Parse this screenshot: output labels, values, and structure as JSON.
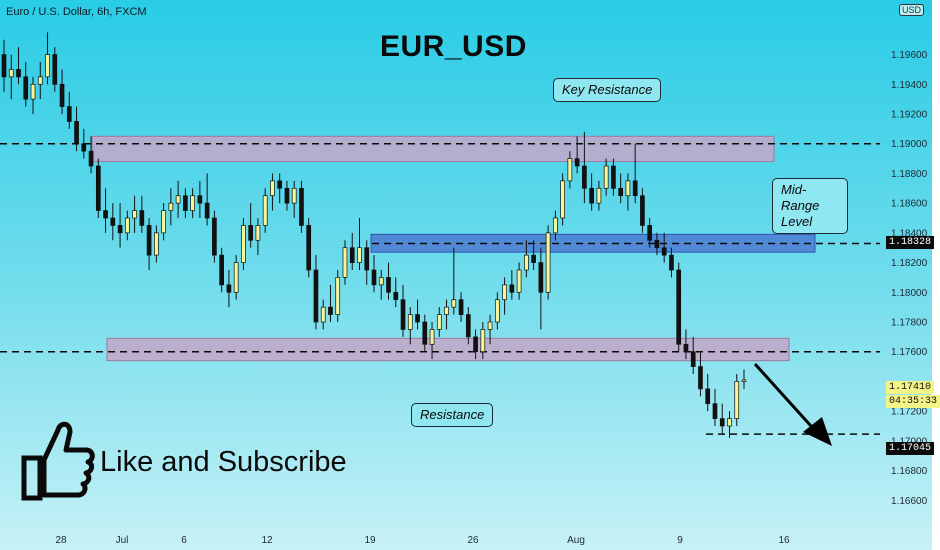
{
  "header": {
    "symbol_info": "Euro / U.S. Dollar, 6h, FXCM",
    "currency": "USD"
  },
  "chart_data": {
    "type": "candlestick",
    "title": "EUR_USD",
    "ylim": [
      1.164,
      1.199
    ],
    "y_ticks": [
      "1.19600",
      "1.19400",
      "1.19200",
      "1.19000",
      "1.18800",
      "1.18600",
      "1.18400",
      "1.18200",
      "1.18000",
      "1.17800",
      "1.17600",
      "1.17200",
      "1.17000",
      "1.16800",
      "1.16600"
    ],
    "x_ticks": [
      "28",
      "Jul",
      "6",
      "12",
      "19",
      "26",
      "Aug",
      "9",
      "16"
    ],
    "zones": [
      {
        "label": "Key Resistance",
        "low": 1.1888,
        "high": 1.1905,
        "color": "#c6a6c8"
      },
      {
        "label": "Mid-Range Level",
        "low": 1.1827,
        "high": 1.1839,
        "color": "#4c7bd4"
      },
      {
        "label": "Resistance",
        "low": 1.1754,
        "high": 1.1769,
        "color": "#c6a6c8"
      }
    ],
    "levels": [
      1.19,
      1.18328,
      1.176,
      1.17045
    ],
    "annotations": [
      "Key Resistance",
      "Mid-Range Level",
      "Resistance"
    ],
    "last_price": "1.17410",
    "countdown": "04:35:33",
    "target_price": "1.17045",
    "mid_level_price": "1.18328",
    "candles": [
      [
        1.196,
        1.197,
        1.1935,
        1.1945
      ],
      [
        1.1945,
        1.196,
        1.193,
        1.195
      ],
      [
        1.195,
        1.1965,
        1.194,
        1.1945
      ],
      [
        1.1945,
        1.1955,
        1.1925,
        1.193
      ],
      [
        1.193,
        1.1945,
        1.192,
        1.194
      ],
      [
        1.194,
        1.1955,
        1.193,
        1.1945
      ],
      [
        1.1945,
        1.1975,
        1.194,
        1.196
      ],
      [
        1.196,
        1.1965,
        1.1935,
        1.194
      ],
      [
        1.194,
        1.195,
        1.192,
        1.1925
      ],
      [
        1.1925,
        1.1935,
        1.191,
        1.1915
      ],
      [
        1.1915,
        1.1925,
        1.1895,
        1.19
      ],
      [
        1.19,
        1.191,
        1.189,
        1.1895
      ],
      [
        1.1895,
        1.1905,
        1.188,
        1.1885
      ],
      [
        1.1885,
        1.189,
        1.185,
        1.1855
      ],
      [
        1.1855,
        1.187,
        1.184,
        1.185
      ],
      [
        1.185,
        1.186,
        1.1835,
        1.1845
      ],
      [
        1.1845,
        1.186,
        1.183,
        1.184
      ],
      [
        1.184,
        1.1855,
        1.1835,
        1.185
      ],
      [
        1.185,
        1.1865,
        1.184,
        1.1855
      ],
      [
        1.1855,
        1.1865,
        1.184,
        1.1845
      ],
      [
        1.1845,
        1.185,
        1.1815,
        1.1825
      ],
      [
        1.1825,
        1.1845,
        1.182,
        1.184
      ],
      [
        1.184,
        1.186,
        1.1835,
        1.1855
      ],
      [
        1.1855,
        1.187,
        1.1845,
        1.186
      ],
      [
        1.186,
        1.1875,
        1.185,
        1.1865
      ],
      [
        1.1865,
        1.187,
        1.185,
        1.1855
      ],
      [
        1.1855,
        1.187,
        1.185,
        1.1865
      ],
      [
        1.1865,
        1.1875,
        1.185,
        1.186
      ],
      [
        1.186,
        1.188,
        1.1845,
        1.185
      ],
      [
        1.185,
        1.1855,
        1.182,
        1.1825
      ],
      [
        1.1825,
        1.183,
        1.18,
        1.1805
      ],
      [
        1.1805,
        1.1815,
        1.179,
        1.18
      ],
      [
        1.18,
        1.1825,
        1.1795,
        1.182
      ],
      [
        1.182,
        1.185,
        1.1815,
        1.1845
      ],
      [
        1.1845,
        1.186,
        1.183,
        1.1835
      ],
      [
        1.1835,
        1.185,
        1.1825,
        1.1845
      ],
      [
        1.1845,
        1.187,
        1.184,
        1.1865
      ],
      [
        1.1865,
        1.188,
        1.1855,
        1.1875
      ],
      [
        1.1875,
        1.188,
        1.186,
        1.187
      ],
      [
        1.187,
        1.1875,
        1.1855,
        1.186
      ],
      [
        1.186,
        1.1875,
        1.185,
        1.187
      ],
      [
        1.187,
        1.1875,
        1.184,
        1.1845
      ],
      [
        1.1845,
        1.185,
        1.181,
        1.1815
      ],
      [
        1.1815,
        1.1825,
        1.1775,
        1.178
      ],
      [
        1.178,
        1.1795,
        1.1775,
        1.179
      ],
      [
        1.179,
        1.1805,
        1.178,
        1.1785
      ],
      [
        1.1785,
        1.1815,
        1.178,
        1.181
      ],
      [
        1.181,
        1.1835,
        1.1805,
        1.183
      ],
      [
        1.183,
        1.184,
        1.1815,
        1.182
      ],
      [
        1.182,
        1.185,
        1.1815,
        1.183
      ],
      [
        1.183,
        1.1835,
        1.1805,
        1.1815
      ],
      [
        1.1815,
        1.1825,
        1.18,
        1.1805
      ],
      [
        1.1805,
        1.1815,
        1.1795,
        1.181
      ],
      [
        1.181,
        1.182,
        1.1795,
        1.18
      ],
      [
        1.18,
        1.181,
        1.179,
        1.1795
      ],
      [
        1.1795,
        1.1805,
        1.177,
        1.1775
      ],
      [
        1.1775,
        1.179,
        1.1765,
        1.1785
      ],
      [
        1.1785,
        1.1795,
        1.1775,
        1.178
      ],
      [
        1.178,
        1.1785,
        1.176,
        1.1765
      ],
      [
        1.1765,
        1.178,
        1.1755,
        1.1775
      ],
      [
        1.1775,
        1.179,
        1.177,
        1.1785
      ],
      [
        1.1785,
        1.1795,
        1.1775,
        1.179
      ],
      [
        1.179,
        1.183,
        1.1785,
        1.1795
      ],
      [
        1.1795,
        1.18,
        1.178,
        1.1785
      ],
      [
        1.1785,
        1.179,
        1.1765,
        1.177
      ],
      [
        1.177,
        1.1775,
        1.1755,
        1.176
      ],
      [
        1.176,
        1.178,
        1.1755,
        1.1775
      ],
      [
        1.1775,
        1.1785,
        1.1765,
        1.178
      ],
      [
        1.178,
        1.18,
        1.1775,
        1.1795
      ],
      [
        1.1795,
        1.181,
        1.1785,
        1.1805
      ],
      [
        1.1805,
        1.1815,
        1.1795,
        1.18
      ],
      [
        1.18,
        1.182,
        1.1795,
        1.1815
      ],
      [
        1.1815,
        1.1835,
        1.181,
        1.1825
      ],
      [
        1.1825,
        1.1835,
        1.1815,
        1.182
      ],
      [
        1.182,
        1.183,
        1.1775,
        1.18
      ],
      [
        1.18,
        1.1845,
        1.1795,
        1.184
      ],
      [
        1.184,
        1.1855,
        1.1835,
        1.185
      ],
      [
        1.185,
        1.188,
        1.1845,
        1.1875
      ],
      [
        1.1875,
        1.1895,
        1.187,
        1.189
      ],
      [
        1.189,
        1.1905,
        1.188,
        1.1885
      ],
      [
        1.1885,
        1.1908,
        1.186,
        1.187
      ],
      [
        1.187,
        1.188,
        1.1855,
        1.186
      ],
      [
        1.186,
        1.1875,
        1.1855,
        1.187
      ],
      [
        1.187,
        1.189,
        1.1865,
        1.1885
      ],
      [
        1.1885,
        1.189,
        1.1865,
        1.187
      ],
      [
        1.187,
        1.188,
        1.186,
        1.1865
      ],
      [
        1.1865,
        1.188,
        1.1855,
        1.1875
      ],
      [
        1.1875,
        1.19,
        1.186,
        1.1865
      ],
      [
        1.1865,
        1.187,
        1.184,
        1.1845
      ],
      [
        1.1845,
        1.185,
        1.183,
        1.1835
      ],
      [
        1.1835,
        1.184,
        1.1825,
        1.183
      ],
      [
        1.183,
        1.184,
        1.182,
        1.1825
      ],
      [
        1.1825,
        1.183,
        1.181,
        1.1815
      ],
      [
        1.1815,
        1.182,
        1.176,
        1.1765
      ],
      [
        1.1765,
        1.1775,
        1.1755,
        1.176
      ],
      [
        1.176,
        1.177,
        1.1745,
        1.175
      ],
      [
        1.175,
        1.176,
        1.173,
        1.1735
      ],
      [
        1.1735,
        1.1745,
        1.172,
        1.1725
      ],
      [
        1.1725,
        1.1735,
        1.171,
        1.1715
      ],
      [
        1.1715,
        1.1725,
        1.1705,
        1.171
      ],
      [
        1.171,
        1.172,
        1.1702,
        1.1715
      ],
      [
        1.1715,
        1.1745,
        1.171,
        1.174
      ],
      [
        1.174,
        1.1748,
        1.1735,
        1.1741
      ]
    ]
  },
  "cta": {
    "text": "Like and Subscribe",
    "icon": "thumbs-up-icon"
  },
  "colors": {
    "bull": "#f5f59a",
    "bear": "#111111",
    "zone_purple": "#c6a6c8",
    "zone_blue": "#4c7bd4",
    "last_price_bg": "#f5f587"
  }
}
